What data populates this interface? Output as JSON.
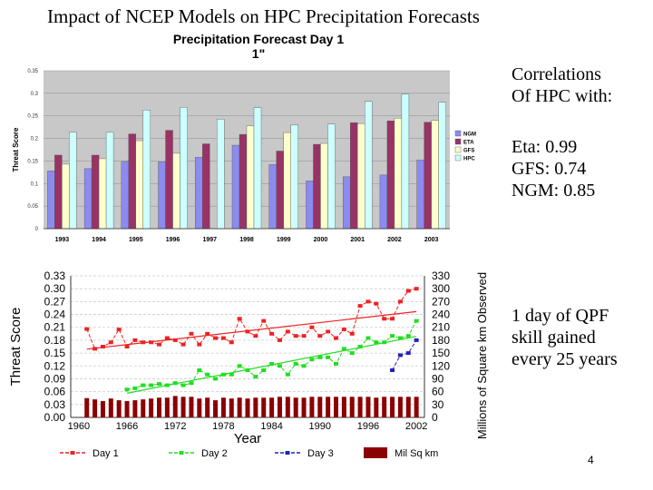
{
  "slide": {
    "title": "Impact of NCEP Models on HPC Precipitation Forecasts",
    "correlations_heading_line1": "Correlations",
    "correlations_heading_line2": "Of HPC with:",
    "correlations": [
      "Eta: 0.99",
      "GFS: 0.74",
      "NGM: 0.85"
    ],
    "note_lines": [
      "1 day of QPF",
      "skill gained",
      "every 25 years"
    ],
    "page_number": "4"
  },
  "colors": {
    "ngm": "#8b8bf0",
    "eta": "#993366",
    "gfs": "#ffffcc",
    "hpc": "#ccffff",
    "plot_bg": "#c8c8c8",
    "day1": "#ee2222",
    "day2": "#22dd22",
    "day3": "#2222bb",
    "milsqkm": "#8b0000"
  },
  "chart_data": [
    {
      "type": "bar",
      "title_line1": "Precipitation Forecast Day 1",
      "title_line2": "1\"",
      "ylabel": "Threat Score",
      "ylim": [
        0,
        0.35
      ],
      "yticks": [
        "0",
        "0.05",
        "0.1",
        "0.15",
        "0.2",
        "0.25",
        "0.3",
        "0.35"
      ],
      "categories": [
        "1993",
        "1994",
        "1995",
        "1996",
        "1997",
        "1998",
        "1999",
        "2000",
        "2001",
        "2002",
        "2003"
      ],
      "series": [
        {
          "name": "NGM",
          "values": [
            0.128,
            0.133,
            0.149,
            0.148,
            0.158,
            0.185,
            0.142,
            0.106,
            0.115,
            0.119,
            0.152
          ]
        },
        {
          "name": "ETA",
          "values": [
            0.163,
            0.163,
            0.21,
            0.218,
            0.188,
            0.209,
            0.172,
            0.187,
            0.235,
            0.239,
            0.236
          ]
        },
        {
          "name": "GFS",
          "values": [
            0.143,
            0.155,
            0.195,
            0.167,
            0.0,
            0.228,
            0.213,
            0.189,
            0.233,
            0.245,
            0.24
          ]
        },
        {
          "name": "HPC",
          "values": [
            0.214,
            0.214,
            0.263,
            0.269,
            0.243,
            0.268,
            0.23,
            0.232,
            0.282,
            0.298,
            0.28
          ]
        }
      ],
      "legend": "right",
      "grid": true
    },
    {
      "type": "line",
      "x": [
        1961,
        1962,
        1963,
        1964,
        1965,
        1966,
        1967,
        1968,
        1969,
        1970,
        1971,
        1972,
        1973,
        1974,
        1975,
        1976,
        1977,
        1978,
        1979,
        1980,
        1981,
        1982,
        1983,
        1984,
        1985,
        1986,
        1987,
        1988,
        1989,
        1990,
        1991,
        1992,
        1993,
        1994,
        1995,
        1996,
        1997,
        1998,
        1999,
        2000,
        2001,
        2002
      ],
      "xticks": [
        "1960",
        "1966",
        "1972",
        "1978",
        "1984",
        "1990",
        "1996",
        "2002"
      ],
      "xtick_values": [
        1960,
        1966,
        1972,
        1978,
        1984,
        1990,
        1996,
        2002
      ],
      "xlim": [
        1959,
        2003
      ],
      "xlabel": "Year",
      "ylabel": "Threat Score",
      "ylim": [
        0,
        0.33
      ],
      "yticks": [
        "0.00",
        "0.03",
        "0.06",
        "0.09",
        "0.12",
        "0.15",
        "0.18",
        "0.21",
        "0.24",
        "0.27",
        "0.30",
        "0.33"
      ],
      "y2label": "Millions of Square km Observed",
      "y2lim": [
        0,
        330
      ],
      "y2ticks": [
        "0",
        "30",
        "60",
        "90",
        "120",
        "150",
        "180",
        "210",
        "240",
        "270",
        "300",
        "330"
      ],
      "series": [
        {
          "name": "Day 1",
          "axis": "left",
          "values": [
            0.206,
            0.16,
            0.165,
            0.175,
            0.205,
            0.165,
            0.18,
            0.175,
            0.175,
            0.17,
            0.185,
            0.18,
            0.17,
            0.195,
            0.17,
            0.195,
            0.185,
            0.185,
            0.175,
            0.23,
            0.2,
            0.19,
            0.225,
            0.195,
            0.18,
            0.2,
            0.19,
            0.19,
            0.21,
            0.19,
            0.2,
            0.185,
            0.205,
            0.195,
            0.26,
            0.27,
            0.265,
            0.23,
            0.23,
            0.27,
            0.295,
            0.3
          ]
        },
        {
          "name": "Day 2",
          "axis": "left",
          "values": [
            null,
            null,
            null,
            null,
            null,
            0.065,
            0.068,
            0.075,
            0.075,
            0.078,
            0.075,
            0.08,
            0.075,
            0.08,
            0.11,
            0.1,
            0.09,
            0.1,
            0.1,
            0.12,
            0.11,
            0.095,
            0.11,
            0.125,
            0.12,
            0.1,
            0.125,
            0.12,
            0.135,
            0.14,
            0.14,
            0.125,
            0.16,
            0.15,
            0.165,
            0.185,
            0.175,
            0.175,
            0.19,
            0.185,
            0.19,
            0.225
          ]
        },
        {
          "name": "Day 3",
          "axis": "left",
          "values": [
            null,
            null,
            null,
            null,
            null,
            null,
            null,
            null,
            null,
            null,
            null,
            null,
            null,
            null,
            null,
            null,
            null,
            null,
            null,
            null,
            null,
            null,
            null,
            null,
            null,
            null,
            null,
            null,
            null,
            null,
            null,
            null,
            null,
            null,
            null,
            null,
            null,
            null,
            0.11,
            0.145,
            0.15,
            0.18
          ]
        },
        {
          "name": "Mil Sq km",
          "axis": "right",
          "type": "bar",
          "values": [
            45,
            42,
            38,
            44,
            40,
            38,
            40,
            42,
            44,
            46,
            46,
            50,
            48,
            48,
            44,
            46,
            40,
            46,
            44,
            46,
            44,
            46,
            46,
            46,
            48,
            48,
            46,
            46,
            48,
            48,
            48,
            48,
            48,
            48,
            48,
            48,
            46,
            48,
            48,
            48,
            48,
            48
          ]
        }
      ],
      "legend": "bottom",
      "grid": true
    }
  ]
}
